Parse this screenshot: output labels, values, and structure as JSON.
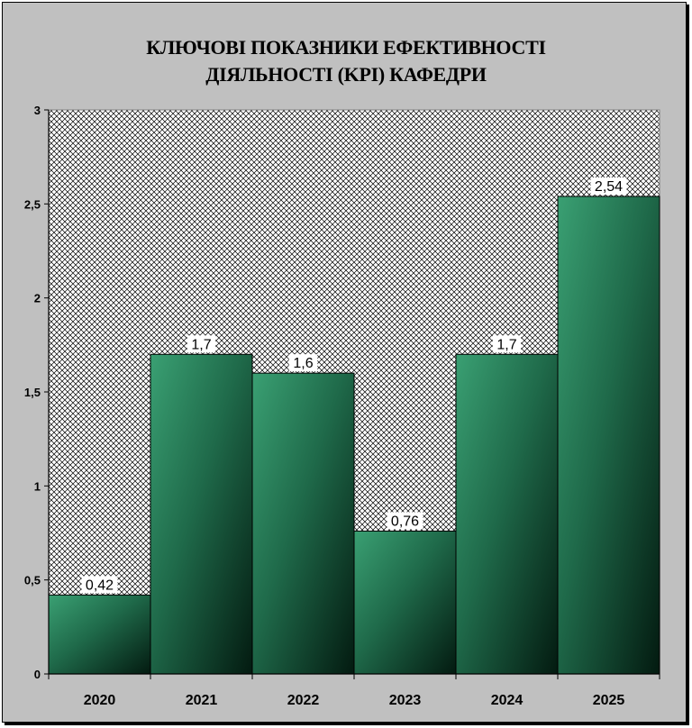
{
  "chart_data": {
    "type": "bar",
    "title_lines": [
      "КЛЮЧОВІ ПОКАЗНИКИ ЕФЕКТИВНОСТІ",
      "ДІЯЛЬНОСТІ (KPI) КАФЕДРИ"
    ],
    "categories": [
      "2020",
      "2021",
      "2022",
      "2023",
      "2024",
      "2025"
    ],
    "values": [
      0.42,
      1.7,
      1.6,
      0.76,
      1.7,
      2.54
    ],
    "data_labels": [
      "0,42",
      "1,7",
      "1,6",
      "0,76",
      "1,7",
      "2,54"
    ],
    "y_ticks": [
      0,
      0.5,
      1,
      1.5,
      2,
      2.5,
      3
    ],
    "y_tick_labels": [
      "0",
      "0,5",
      "1",
      "1,5",
      "2",
      "2,5",
      "3"
    ],
    "ylim": [
      0,
      3
    ],
    "xlabel": "",
    "ylabel": "",
    "grid": false,
    "legend": "none",
    "bar_color_light": "#3aa073",
    "bar_color_dark": "#031a10",
    "frame_color": "#c0c0c0",
    "plot_background_pattern": "crosshatch"
  }
}
